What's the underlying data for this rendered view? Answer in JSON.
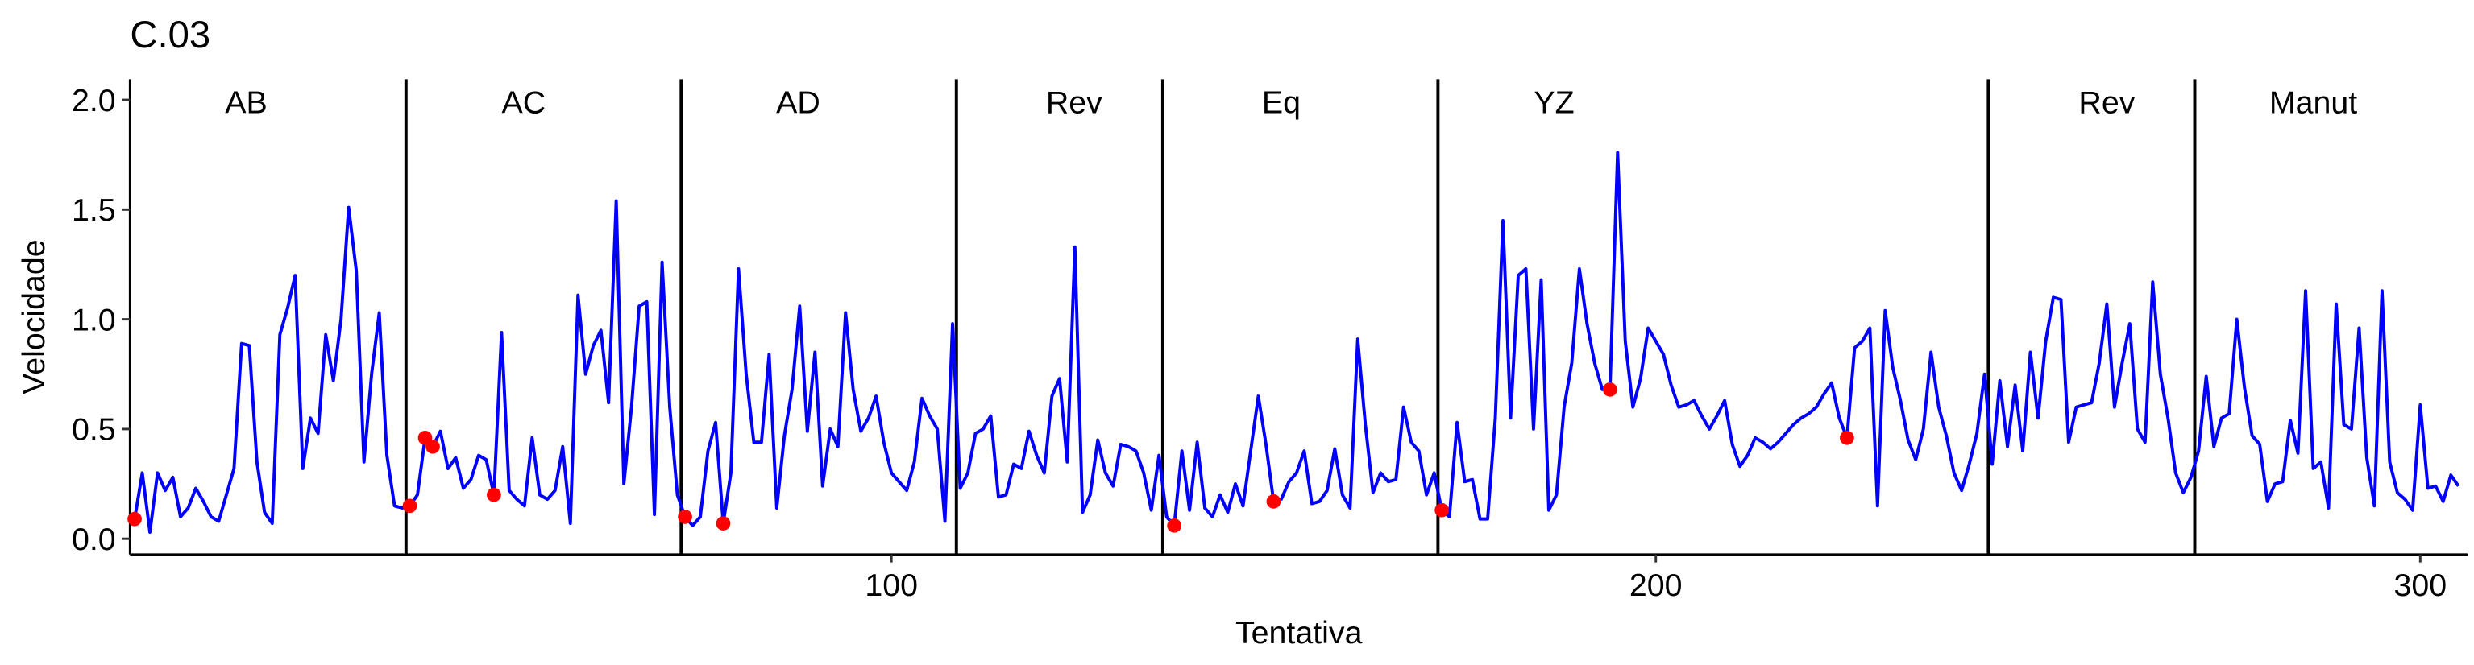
{
  "chart_data": {
    "type": "line",
    "title": "C.03",
    "x_label": "Tentativa",
    "y_label": "Velocidade",
    "xlim": [
      0.4,
      306.2
    ],
    "ylim": [
      -0.072,
      2.094
    ],
    "xticks": [
      100,
      200,
      300
    ],
    "yticks": [
      {
        "value": 0,
        "label": "0.0"
      },
      0.5,
      {
        "value": 1,
        "label": "1.0"
      },
      1.5,
      {
        "value": 2,
        "label": "2.0"
      }
    ],
    "x": [
      1,
      2,
      3,
      4,
      5,
      6,
      7,
      8,
      9,
      10,
      11,
      12,
      13,
      14,
      15,
      16,
      17,
      18,
      19,
      20,
      21,
      22,
      23,
      24,
      25,
      26,
      27,
      28,
      29,
      30,
      31,
      32,
      33,
      34,
      35,
      36,
      37,
      38,
      39,
      40,
      41,
      42,
      43,
      44,
      45,
      46,
      47,
      48,
      49,
      50,
      51,
      52,
      53,
      54,
      55,
      56,
      57,
      58,
      59,
      60,
      61,
      62,
      63,
      64,
      65,
      66,
      67,
      68,
      69,
      70,
      71,
      72,
      73,
      74,
      75,
      76,
      77,
      78,
      79,
      80,
      81,
      82,
      83,
      84,
      85,
      86,
      87,
      88,
      89,
      90,
      91,
      92,
      93,
      94,
      95,
      96,
      97,
      98,
      99,
      100,
      101,
      102,
      103,
      104,
      105,
      106,
      107,
      108,
      109,
      110,
      111,
      112,
      113,
      114,
      115,
      116,
      117,
      118,
      119,
      120,
      121,
      122,
      123,
      124,
      125,
      126,
      127,
      128,
      129,
      130,
      131,
      132,
      133,
      134,
      135,
      136,
      137,
      138,
      139,
      140,
      141,
      142,
      143,
      144,
      145,
      146,
      147,
      148,
      149,
      150,
      151,
      152,
      153,
      154,
      155,
      156,
      157,
      158,
      159,
      160,
      161,
      162,
      163,
      164,
      165,
      166,
      167,
      168,
      169,
      170,
      171,
      172,
      173,
      174,
      175,
      176,
      177,
      178,
      179,
      180,
      181,
      182,
      183,
      184,
      185,
      186,
      187,
      188,
      189,
      190,
      191,
      192,
      193,
      194,
      195,
      196,
      197,
      198,
      199,
      200,
      201,
      202,
      203,
      204,
      205,
      206,
      207,
      208,
      209,
      210,
      211,
      212,
      213,
      214,
      215,
      216,
      217,
      218,
      219,
      220,
      221,
      222,
      223,
      224,
      225,
      226,
      227,
      228,
      229,
      230,
      231,
      232,
      233,
      234,
      235,
      236,
      237,
      238,
      239,
      240,
      241,
      242,
      243,
      244,
      245,
      246,
      247,
      248,
      249,
      250,
      251,
      252,
      253,
      254,
      255,
      256,
      257,
      258,
      259,
      260,
      261,
      262,
      263,
      264,
      265,
      266,
      267,
      268,
      269,
      270,
      271,
      272,
      273,
      274,
      275,
      276,
      277,
      278,
      279,
      280,
      281,
      282,
      283,
      284,
      285,
      286,
      287,
      288,
      289,
      290,
      291,
      292,
      293,
      294,
      295,
      296,
      297,
      298,
      299,
      300,
      301,
      302,
      303,
      304,
      305
    ],
    "series": [
      {
        "color": "#0000ff",
        "values": [
          0.09,
          0.3,
          0.03,
          0.3,
          0.22,
          0.28,
          0.1,
          0.14,
          0.23,
          0.17,
          0.1,
          0.08,
          0.2,
          0.32,
          0.89,
          0.88,
          0.35,
          0.12,
          0.07,
          0.93,
          1.05,
          1.2,
          0.32,
          0.55,
          0.48,
          0.93,
          0.72,
          1.0,
          1.51,
          1.22,
          0.35,
          0.75,
          1.03,
          0.38,
          0.15,
          0.14,
          0.15,
          0.2,
          0.46,
          0.42,
          0.49,
          0.32,
          0.37,
          0.23,
          0.27,
          0.38,
          0.36,
          0.2,
          0.94,
          0.22,
          0.18,
          0.15,
          0.46,
          0.2,
          0.18,
          0.22,
          0.42,
          0.07,
          1.11,
          0.75,
          0.88,
          0.95,
          0.62,
          1.54,
          0.25,
          0.6,
          1.06,
          1.08,
          0.11,
          1.26,
          0.6,
          0.2,
          0.1,
          0.06,
          0.1,
          0.4,
          0.53,
          0.07,
          0.3,
          1.23,
          0.75,
          0.44,
          0.44,
          0.84,
          0.14,
          0.47,
          0.68,
          1.06,
          0.49,
          0.85,
          0.24,
          0.5,
          0.42,
          1.03,
          0.68,
          0.49,
          0.55,
          0.65,
          0.44,
          0.3,
          0.26,
          0.22,
          0.35,
          0.64,
          0.56,
          0.5,
          0.08,
          0.98,
          0.23,
          0.3,
          0.48,
          0.5,
          0.56,
          0.19,
          0.2,
          0.34,
          0.32,
          0.49,
          0.38,
          0.3,
          0.65,
          0.73,
          0.35,
          1.33,
          0.12,
          0.2,
          0.45,
          0.3,
          0.24,
          0.43,
          0.42,
          0.4,
          0.3,
          0.13,
          0.38,
          0.1,
          0.06,
          0.4,
          0.13,
          0.44,
          0.14,
          0.1,
          0.2,
          0.12,
          0.25,
          0.15,
          0.4,
          0.65,
          0.43,
          0.17,
          0.18,
          0.26,
          0.3,
          0.4,
          0.16,
          0.17,
          0.22,
          0.41,
          0.2,
          0.14,
          0.91,
          0.52,
          0.21,
          0.3,
          0.26,
          0.27,
          0.6,
          0.44,
          0.4,
          0.2,
          0.3,
          0.13,
          0.1,
          0.53,
          0.26,
          0.27,
          0.09,
          0.09,
          0.55,
          1.45,
          0.55,
          1.2,
          1.23,
          0.5,
          1.18,
          0.13,
          0.2,
          0.6,
          0.8,
          1.23,
          0.98,
          0.8,
          0.68,
          0.68,
          1.76,
          0.9,
          0.6,
          0.73,
          0.96,
          0.9,
          0.84,
          0.7,
          0.6,
          0.61,
          0.63,
          0.56,
          0.5,
          0.56,
          0.63,
          0.43,
          0.33,
          0.38,
          0.46,
          0.44,
          0.41,
          0.44,
          0.48,
          0.52,
          0.55,
          0.57,
          0.6,
          0.66,
          0.71,
          0.55,
          0.46,
          0.87,
          0.9,
          0.96,
          0.15,
          1.04,
          0.78,
          0.63,
          0.45,
          0.36,
          0.5,
          0.85,
          0.6,
          0.47,
          0.3,
          0.22,
          0.34,
          0.48,
          0.75,
          0.34,
          0.72,
          0.42,
          0.7,
          0.4,
          0.85,
          0.55,
          0.9,
          1.1,
          1.09,
          0.44,
          0.6,
          0.61,
          0.62,
          0.8,
          1.07,
          0.6,
          0.8,
          0.98,
          0.5,
          0.44,
          1.17,
          0.75,
          0.55,
          0.3,
          0.21,
          0.28,
          0.4,
          0.74,
          0.42,
          0.55,
          0.57,
          1.0,
          0.69,
          0.47,
          0.43,
          0.17,
          0.25,
          0.26,
          0.54,
          0.39,
          1.13,
          0.32,
          0.35,
          0.14,
          1.07,
          0.52,
          0.5,
          0.96,
          0.37,
          0.15,
          1.13,
          0.35,
          0.21,
          0.18,
          0.13,
          0.61,
          0.23,
          0.24,
          0.17,
          0.29,
          0.24
        ]
      }
    ],
    "points": {
      "color": "#ff0000",
      "x": [
        1,
        37,
        39,
        40,
        48,
        73,
        78,
        137,
        150,
        172,
        194,
        225
      ],
      "values": [
        0.09,
        0.15,
        0.46,
        0.42,
        0.2,
        0.1,
        0.07,
        0.06,
        0.17,
        0.13,
        0.68,
        0.46
      ]
    },
    "phase_lines": [
      36.5,
      72.5,
      108.5,
      135.5,
      171.5,
      243.5,
      270.5
    ],
    "phase_label_y": 1.99,
    "phases": [
      {
        "label": "AB",
        "x": 15.6
      },
      {
        "label": "AC",
        "x": 51.9
      },
      {
        "label": "AD",
        "x": 87.8
      },
      {
        "label": "Rev",
        "x": 123.9
      },
      {
        "label": "Eq",
        "x": 151
      },
      {
        "label": "YZ",
        "x": 186.7
      },
      {
        "label": "Rev",
        "x": 259
      },
      {
        "label": "Manut",
        "x": 286
      }
    ]
  }
}
